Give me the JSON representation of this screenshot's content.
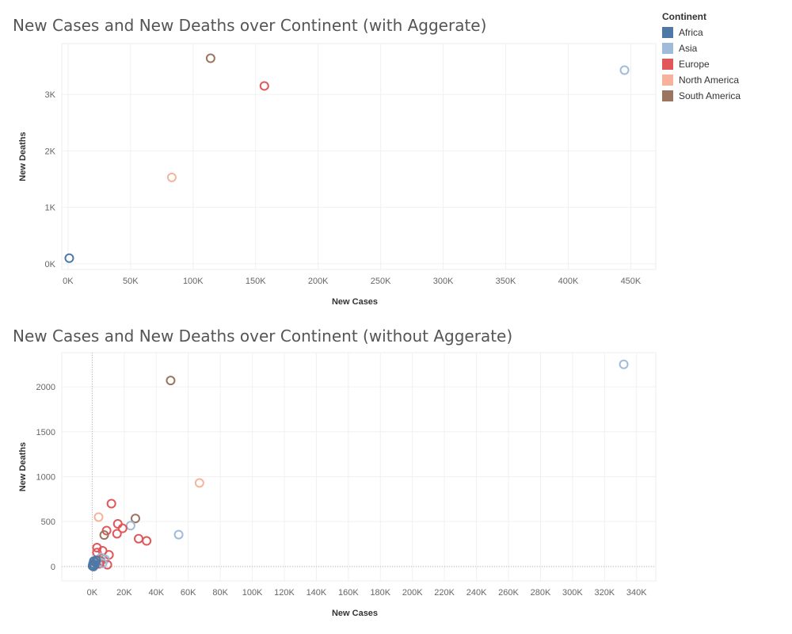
{
  "legend": {
    "title": "Continent",
    "items": [
      {
        "label": "Africa",
        "color": "#4e79a7"
      },
      {
        "label": "Asia",
        "color": "#a0bbd9"
      },
      {
        "label": "Europe",
        "color": "#e15759"
      },
      {
        "label": "North America",
        "color": "#f7b29b"
      },
      {
        "label": "South America",
        "color": "#9c7560"
      }
    ]
  },
  "chart_data": [
    {
      "type": "scatter",
      "title": "New Cases and New Deaths over Continent (with Aggerate)",
      "xlabel": "New Cases",
      "ylabel": "New Deaths",
      "xlim": [
        -5000,
        470000
      ],
      "ylim": [
        -100,
        3900
      ],
      "xticks": [
        0,
        50000,
        100000,
        150000,
        200000,
        250000,
        300000,
        350000,
        400000,
        450000
      ],
      "xtick_labels": [
        "0K",
        "50K",
        "100K",
        "150K",
        "200K",
        "250K",
        "300K",
        "350K",
        "400K",
        "450K"
      ],
      "yticks": [
        0,
        1000,
        2000,
        3000
      ],
      "ytick_labels": [
        "0K",
        "1K",
        "2K",
        "3K"
      ],
      "grid": true,
      "legend_position": "top-right",
      "points": [
        {
          "continent": "Africa",
          "x": 1000,
          "y": 100
        },
        {
          "continent": "Asia",
          "x": 445000,
          "y": 3430
        },
        {
          "continent": "Europe",
          "x": 157000,
          "y": 3150
        },
        {
          "continent": "North America",
          "x": 83000,
          "y": 1530
        },
        {
          "continent": "South America",
          "x": 114000,
          "y": 3640
        }
      ]
    },
    {
      "type": "scatter",
      "title": "New Cases and New Deaths over Continent (without Aggerate)",
      "xlabel": "New Cases",
      "ylabel": "New Deaths",
      "xlim": [
        -19000,
        352000
      ],
      "ylim": [
        -160,
        2380
      ],
      "xticks": [
        0,
        20000,
        40000,
        60000,
        80000,
        100000,
        120000,
        140000,
        160000,
        180000,
        200000,
        220000,
        240000,
        260000,
        280000,
        300000,
        320000,
        340000
      ],
      "xtick_labels": [
        "0K",
        "20K",
        "40K",
        "60K",
        "80K",
        "100K",
        "120K",
        "140K",
        "160K",
        "180K",
        "200K",
        "220K",
        "240K",
        "260K",
        "280K",
        "300K",
        "320K",
        "340K"
      ],
      "yticks": [
        0,
        500,
        1000,
        1500,
        2000
      ],
      "ytick_labels": [
        "0",
        "500",
        "1000",
        "1500",
        "2000"
      ],
      "grid": true,
      "legend_position": "top-right",
      "points": [
        {
          "continent": "Asia",
          "x": 332000,
          "y": 2250
        },
        {
          "continent": "South America",
          "x": 49000,
          "y": 2070
        },
        {
          "continent": "North America",
          "x": 67000,
          "y": 930
        },
        {
          "continent": "Europe",
          "x": 12000,
          "y": 700
        },
        {
          "continent": "North America",
          "x": 4000,
          "y": 550
        },
        {
          "continent": "South America",
          "x": 27000,
          "y": 535
        },
        {
          "continent": "Europe",
          "x": 16000,
          "y": 475
        },
        {
          "continent": "Asia",
          "x": 24000,
          "y": 455
        },
        {
          "continent": "Europe",
          "x": 19000,
          "y": 425
        },
        {
          "continent": "Europe",
          "x": 9000,
          "y": 400
        },
        {
          "continent": "Europe",
          "x": 15500,
          "y": 365
        },
        {
          "continent": "Asia",
          "x": 54000,
          "y": 355
        },
        {
          "continent": "South America",
          "x": 7500,
          "y": 350
        },
        {
          "continent": "Europe",
          "x": 29000,
          "y": 310
        },
        {
          "continent": "Europe",
          "x": 34000,
          "y": 285
        },
        {
          "continent": "Europe",
          "x": 3000,
          "y": 210
        },
        {
          "continent": "Europe",
          "x": 6500,
          "y": 175
        },
        {
          "continent": "Europe",
          "x": 3000,
          "y": 155
        },
        {
          "continent": "Europe",
          "x": 10500,
          "y": 130
        },
        {
          "continent": "Asia",
          "x": 5500,
          "y": 100
        },
        {
          "continent": "Asia",
          "x": 8000,
          "y": 80
        },
        {
          "continent": "South America",
          "x": 5000,
          "y": 65
        },
        {
          "continent": "Europe",
          "x": 2500,
          "y": 55
        },
        {
          "continent": "Asia",
          "x": 4000,
          "y": 40
        },
        {
          "continent": "Europe",
          "x": 9500,
          "y": 20
        },
        {
          "continent": "Europe",
          "x": 4500,
          "y": 30
        },
        {
          "continent": "Asia",
          "x": 6500,
          "y": 35
        },
        {
          "continent": "Africa",
          "x": 1000,
          "y": 60
        },
        {
          "continent": "Africa",
          "x": 2000,
          "y": 45
        },
        {
          "continent": "Africa",
          "x": 500,
          "y": 30
        },
        {
          "continent": "Africa",
          "x": 1500,
          "y": 15
        },
        {
          "continent": "Africa",
          "x": 200,
          "y": 5
        },
        {
          "continent": "Africa",
          "x": 2500,
          "y": 70
        },
        {
          "continent": "Africa",
          "x": 800,
          "y": 0
        }
      ]
    }
  ]
}
